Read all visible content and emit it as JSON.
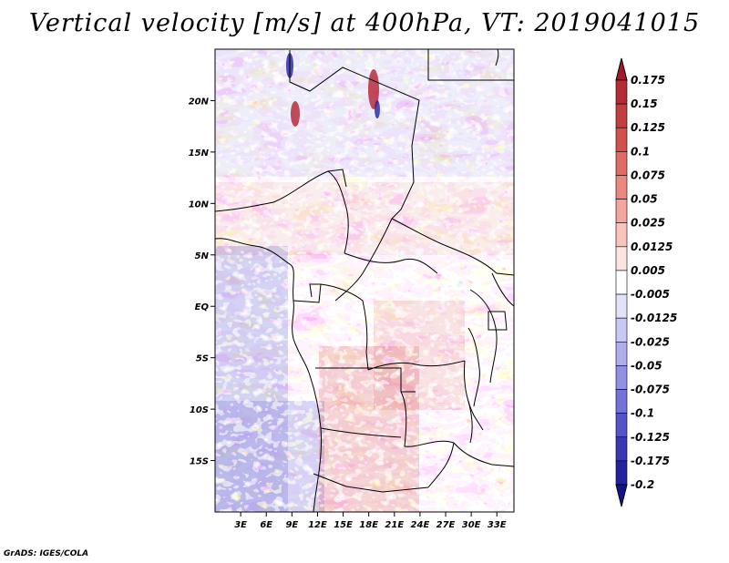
{
  "title": "Vertical velocity [m/s] at 400hPa, VT: 2019041015",
  "credit": "GrADS: IGES/COLA",
  "map": {
    "lon_range": [
      0,
      35
    ],
    "lat_range": [
      -20,
      25
    ],
    "x_ticks": [
      {
        "value": 3,
        "label": "3E"
      },
      {
        "value": 6,
        "label": "6E"
      },
      {
        "value": 9,
        "label": "9E"
      },
      {
        "value": 12,
        "label": "12E"
      },
      {
        "value": 15,
        "label": "15E"
      },
      {
        "value": 18,
        "label": "18E"
      },
      {
        "value": 21,
        "label": "21E"
      },
      {
        "value": 24,
        "label": "24E"
      },
      {
        "value": 27,
        "label": "27E"
      },
      {
        "value": 30,
        "label": "30E"
      },
      {
        "value": 33,
        "label": "33E"
      }
    ],
    "y_ticks": [
      {
        "value": 20,
        "label": "20N"
      },
      {
        "value": 15,
        "label": "15N"
      },
      {
        "value": 10,
        "label": "10N"
      },
      {
        "value": 5,
        "label": "5N"
      },
      {
        "value": 0,
        "label": "EQ"
      },
      {
        "value": -5,
        "label": "5S"
      },
      {
        "value": -10,
        "label": "10S"
      },
      {
        "value": -15,
        "label": "15S"
      }
    ]
  },
  "colorbar": {
    "labels": [
      "0.175",
      "0.15",
      "0.125",
      "0.1",
      "0.075",
      "0.05",
      "0.025",
      "0.0125",
      "0.005",
      "-0.005",
      "-0.0125",
      "-0.025",
      "-0.05",
      "-0.075",
      "-0.1",
      "-0.125",
      "-0.175",
      "-0.2"
    ],
    "colors": [
      "#a01c28",
      "#b42b35",
      "#c33e40",
      "#d2514f",
      "#df6a66",
      "#ea8780",
      "#f3a69e",
      "#fac4bd",
      "#fde4e0",
      "#ffffff",
      "#e2e2fb",
      "#c8c8f5",
      "#aeaeee",
      "#9090e4",
      "#7272d8",
      "#5454c8",
      "#3838b4",
      "#22229e",
      "#14148a"
    ]
  }
}
